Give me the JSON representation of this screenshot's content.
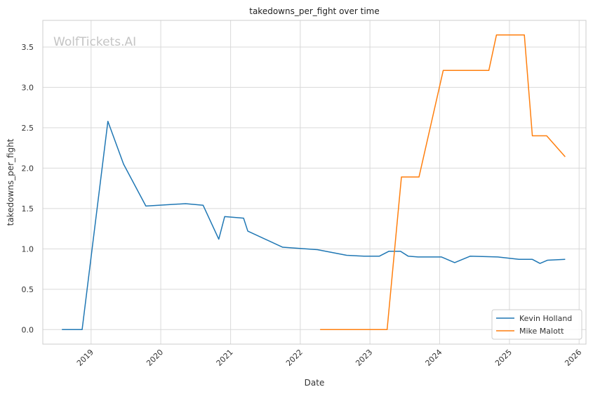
{
  "chart_data": {
    "type": "line",
    "title": "takedowns_per_fight over time",
    "xlabel": "Date",
    "ylabel": "takedowns_per_fight",
    "watermark": "WolfTickets.AI",
    "xlim": [
      "2018-04-23",
      "2026-02-06"
    ],
    "ylim": [
      -0.18,
      3.83
    ],
    "x_ticks": [
      "2019",
      "2020",
      "2021",
      "2022",
      "2023",
      "2024",
      "2025",
      "2026"
    ],
    "y_ticks": [
      "0.0",
      "0.5",
      "1.0",
      "1.5",
      "2.0",
      "2.5",
      "3.0",
      "3.5"
    ],
    "grid": true,
    "legend_position": "bottom-right",
    "series": [
      {
        "name": "Kevin Holland",
        "color": "#1f77b4",
        "points": [
          [
            "2018-08-01",
            0.0
          ],
          [
            "2018-11-15",
            0.0
          ],
          [
            "2019-03-30",
            2.58
          ],
          [
            "2019-06-20",
            2.05
          ],
          [
            "2019-10-15",
            1.53
          ],
          [
            "2020-05-10",
            1.56
          ],
          [
            "2020-08-10",
            1.54
          ],
          [
            "2020-10-31",
            1.12
          ],
          [
            "2020-12-01",
            1.4
          ],
          [
            "2021-03-10",
            1.38
          ],
          [
            "2021-04-01",
            1.22
          ],
          [
            "2021-10-01",
            1.02
          ],
          [
            "2022-04-01",
            0.99
          ],
          [
            "2022-09-01",
            0.92
          ],
          [
            "2022-12-01",
            0.91
          ],
          [
            "2023-02-20",
            0.91
          ],
          [
            "2023-04-10",
            0.97
          ],
          [
            "2023-06-10",
            0.97
          ],
          [
            "2023-07-20",
            0.91
          ],
          [
            "2023-09-10",
            0.9
          ],
          [
            "2024-01-10",
            0.9
          ],
          [
            "2024-03-20",
            0.83
          ],
          [
            "2024-06-10",
            0.91
          ],
          [
            "2024-11-01",
            0.9
          ],
          [
            "2025-02-20",
            0.87
          ],
          [
            "2025-05-01",
            0.87
          ],
          [
            "2025-06-10",
            0.82
          ],
          [
            "2025-07-20",
            0.86
          ],
          [
            "2025-10-20",
            0.87
          ]
        ]
      },
      {
        "name": "Mike Malott",
        "color": "#ff7f0e",
        "points": [
          [
            "2022-04-15",
            0.0
          ],
          [
            "2023-04-01",
            0.0
          ],
          [
            "2023-06-15",
            1.89
          ],
          [
            "2023-09-15",
            1.89
          ],
          [
            "2024-01-20",
            3.21
          ],
          [
            "2024-09-15",
            3.21
          ],
          [
            "2024-10-25",
            3.65
          ],
          [
            "2025-03-20",
            3.65
          ],
          [
            "2025-05-01",
            2.4
          ],
          [
            "2025-07-15",
            2.4
          ],
          [
            "2025-10-20",
            2.14
          ]
        ]
      }
    ]
  }
}
